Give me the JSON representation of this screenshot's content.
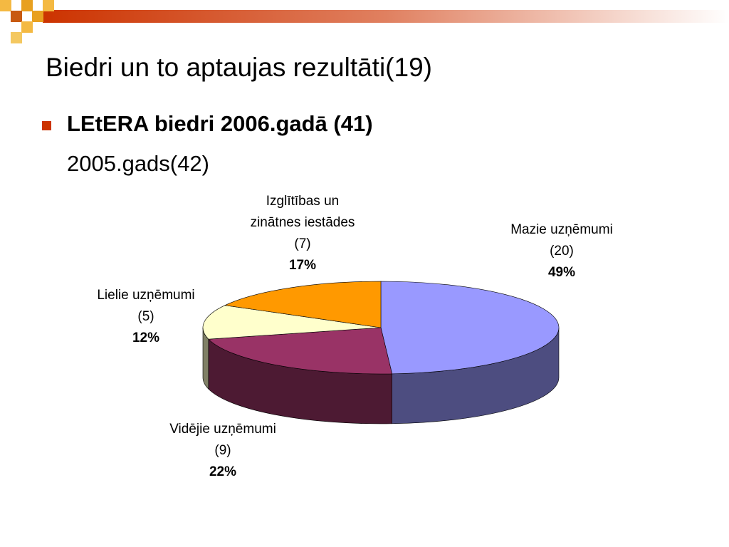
{
  "slide": {
    "title": "Biedri un to aptaujas rezultāti(19)",
    "bullet": "LEtERA biedri 2006.gadā (41)",
    "subline": "2005.gads(42)"
  },
  "chart_data": {
    "type": "pie",
    "categories": [
      "Mazie uzņēmumi (20)",
      "Vidējie uzņēmumi (9)",
      "Lielie uzņēmumi (5)",
      "Izglītības un zinātnes iestādes (7)"
    ],
    "values": [
      49,
      22,
      12,
      17
    ],
    "value_labels": [
      "49%",
      "22%",
      "12%",
      "17%"
    ],
    "colors": [
      "#9999ff",
      "#993366",
      "#ffffcc",
      "#ff9900"
    ]
  }
}
